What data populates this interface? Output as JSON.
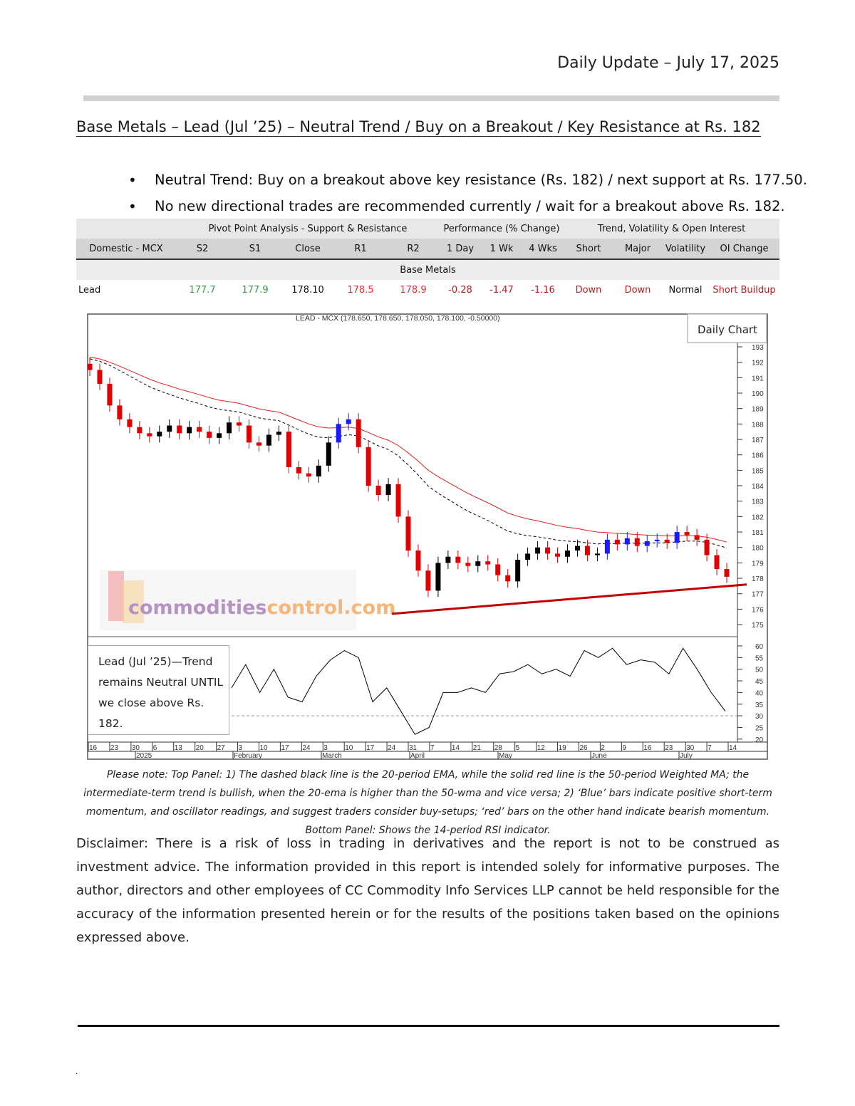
{
  "header": {
    "date": "Daily Update – July 17, 2025"
  },
  "title": "Base Metals – Lead (Jul   ’25) – Neutral Trend / Buy on a Breakout / Key Resistance at Rs. 182",
  "bullets": [
    {
      "bold": "Neutral Trend",
      "text": ": Buy on a breakout above key resistance (Rs. 182) / next support at Rs. 177.50."
    },
    {
      "bold": "",
      "text": "No new directional trades are recommended currently / wait for a breakout above Rs. 182."
    }
  ],
  "table": {
    "groups": [
      "Pivot Point Analysis - Support & Resistance",
      "Performance (% Change)",
      "Trend, Volatility & Open Interest"
    ],
    "headers": [
      "Domestic - MCX",
      "S2",
      "S1",
      "Close",
      "R1",
      "R2",
      "1 Day",
      "1 Wk",
      "4 Wks",
      "Short",
      "Major",
      "Volatility",
      "OI Change"
    ],
    "section": "Base Metals",
    "row": [
      "Lead",
      "177.7",
      "177.9",
      "178.10",
      "178.5",
      "178.9",
      "-0.28",
      "-1.47",
      "-1.16",
      "Down",
      "Down",
      "Normal",
      "Short Buildup"
    ]
  },
  "chart_data": {
    "type": "candlestick",
    "title": "LEAD - MCX (178.650, 178.650, 178.050, 178.100, -0.50000)",
    "badge": "Daily Chart",
    "watermark": "commoditiescontrol.com",
    "annotation": "Lead (Jul   ’25)—Trend remains Neutral UNTIL we close above Rs. 182.",
    "price_axis": {
      "ticks": [
        193,
        192,
        191,
        190,
        189,
        188,
        187,
        186,
        185,
        184,
        183,
        182,
        181,
        180,
        179,
        178,
        177,
        176,
        175
      ],
      "range": [
        175,
        193
      ]
    },
    "rsi_axis": {
      "ticks": [
        60,
        55,
        50,
        45,
        40,
        35,
        30,
        25,
        20
      ],
      "range": [
        20,
        60
      ],
      "reference": 30
    },
    "x_day_ticks": [
      "16",
      "23",
      "30",
      "6",
      "13",
      "20",
      "27",
      "3",
      "10",
      "17",
      "24",
      "3",
      "10",
      "17",
      "24",
      "31",
      "7",
      "14",
      "21",
      "28",
      "5",
      "12",
      "19",
      "26",
      "2",
      "9",
      "16",
      "23",
      "30",
      "7",
      "14"
    ],
    "x_month_labels": [
      "2025",
      "February",
      "March",
      "April",
      "May",
      "June",
      "July"
    ],
    "date_range": [
      "2025-01-16",
      "2025-07-17"
    ],
    "closes": [
      191.5,
      190.6,
      189.2,
      188.3,
      187.8,
      187.4,
      187.2,
      187.5,
      187.9,
      187.4,
      187.8,
      187.5,
      187.1,
      187.4,
      188.1,
      187.9,
      186.8,
      186.6,
      187.3,
      187.5,
      185.2,
      184.8,
      184.6,
      185.3,
      186.8,
      188.0,
      188.3,
      186.5,
      184.0,
      183.4,
      184.1,
      182.0,
      179.8,
      178.5,
      177.2,
      179.0,
      179.4,
      179.0,
      178.8,
      179.1,
      178.9,
      178.2,
      177.8,
      179.2,
      179.6,
      180.0,
      179.6,
      179.4,
      179.8,
      180.1,
      179.5,
      179.6,
      180.5,
      180.2,
      180.6,
      180.1,
      180.4,
      180.5,
      180.3,
      181.0,
      180.8,
      180.5,
      179.5,
      178.6,
      178.1
    ],
    "rsi": [
      42,
      52,
      40,
      50,
      38,
      36,
      47,
      54,
      58,
      55,
      36,
      42,
      32,
      22,
      25,
      40,
      40,
      42,
      40,
      48,
      49,
      52,
      48,
      50,
      47,
      58,
      55,
      59,
      52,
      54,
      53,
      48,
      59,
      50,
      40,
      32
    ],
    "trendline": {
      "start": 175.7,
      "end": 177.6
    },
    "series": [
      {
        "type": "ema",
        "period": 20,
        "style": "dashed black"
      },
      {
        "type": "wma",
        "period": 50,
        "style": "solid red"
      }
    ]
  },
  "note": "Please note: Top Panel: 1) The dashed black line is the 20-period EMA, while the solid red line is the 50-period Weighted MA; the intermediate-term trend is bullish, when the 20-ema is higher than the 50-wma and vice versa; 2)   ‘Blue’   bars indicate positive short-term momentum, and oscillator readings, and suggest traders consider buy-setups;   ‘red’   bars on the other hand indicate bearish momentum. Bottom Panel: Shows the 14-period RSI indicator.",
  "disclaimer": "Disclaimer: There is a risk of loss in trading in derivatives and the report is not to be construed as investment advice. The information provided in this report is intended solely for informative purposes. The author, directors and other employees of CC Commodity Info Services LLP cannot be held responsible for the accuracy of the information presented herein or for the results of the positions taken based on the opinions expressed above.",
  "footer_mark": ".",
  "colors": {
    "up": "#1a1aff",
    "down": "#e00000",
    "neutral": "#000000",
    "wma": "#e02020",
    "trendline": "#c00000"
  }
}
